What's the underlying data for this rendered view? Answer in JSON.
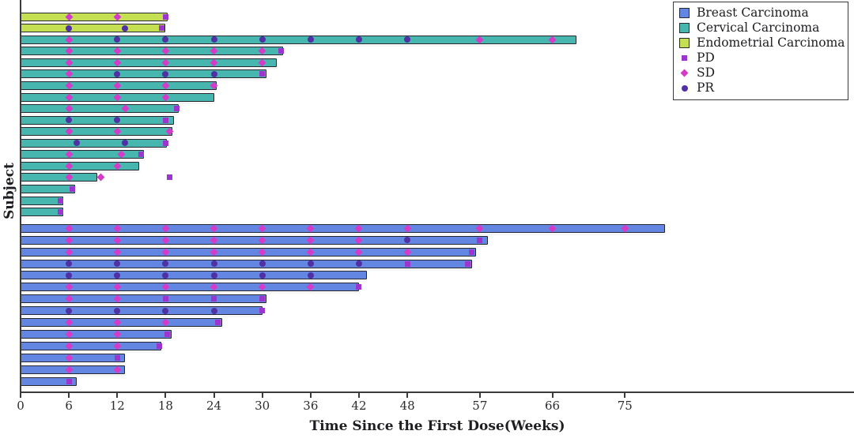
{
  "figure": {
    "x_axis_label": "Time Since the First Dose(Weeks)",
    "y_axis_label": "Subject"
  },
  "legend": {
    "groups": [
      {
        "label": "Breast Carcinoma",
        "color": "#6286e2"
      },
      {
        "label": "Cervical Carcinoma",
        "color": "#46b6ae"
      },
      {
        "label": "Endometrial Carcinoma",
        "color": "#c4df51"
      }
    ],
    "markers": [
      {
        "label": "PD",
        "shape": "square",
        "color": "#9c35cf"
      },
      {
        "label": "SD",
        "shape": "diamond",
        "color": "#d33bc8"
      },
      {
        "label": "PR",
        "shape": "circle",
        "color": "#5130a5"
      }
    ]
  },
  "chart_data": {
    "type": "bar",
    "subtype": "swimmer-plot",
    "orientation": "horizontal",
    "title": "",
    "xlabel": "Time Since the First Dose(Weeks)",
    "ylabel": "Subject",
    "x_ticks": [
      0,
      6,
      12,
      18,
      24,
      30,
      36,
      42,
      48,
      57,
      66,
      75
    ],
    "xlim": [
      0,
      103
    ],
    "grid": false,
    "legend_position": "top-right",
    "marker_legend": [
      "PD",
      "SD",
      "PR"
    ],
    "subjects": [
      {
        "group": "Endometrial Carcinoma",
        "weeks": 18.3,
        "markers": [
          [
            "SD",
            6
          ],
          [
            "SD",
            12
          ],
          [
            "PD",
            18
          ]
        ]
      },
      {
        "group": "Endometrial Carcinoma",
        "weeks": 18.0,
        "markers": [
          [
            "PR",
            6
          ],
          [
            "PR",
            13
          ],
          [
            "PD",
            17.5
          ]
        ]
      },
      {
        "group": "Cervical Carcinoma",
        "weeks": 69.0,
        "markers": [
          [
            "SD",
            6
          ],
          [
            "PR",
            12
          ],
          [
            "PR",
            18
          ],
          [
            "PR",
            24
          ],
          [
            "PR",
            30
          ],
          [
            "PR",
            36
          ],
          [
            "PR",
            42
          ],
          [
            "PR",
            48
          ],
          [
            "SD",
            57
          ],
          [
            "SD",
            66
          ]
        ]
      },
      {
        "group": "Cervical Carcinoma",
        "weeks": 32.6,
        "markers": [
          [
            "SD",
            6
          ],
          [
            "SD",
            12
          ],
          [
            "SD",
            18
          ],
          [
            "SD",
            24
          ],
          [
            "SD",
            30
          ],
          [
            "PD",
            32.3
          ]
        ]
      },
      {
        "group": "Cervical Carcinoma",
        "weeks": 31.8,
        "markers": [
          [
            "SD",
            6
          ],
          [
            "SD",
            12
          ],
          [
            "SD",
            18
          ],
          [
            "SD",
            24
          ],
          [
            "SD",
            30
          ]
        ]
      },
      {
        "group": "Cervical Carcinoma",
        "weeks": 30.5,
        "markers": [
          [
            "SD",
            6
          ],
          [
            "PR",
            12
          ],
          [
            "PR",
            18
          ],
          [
            "PR",
            24
          ],
          [
            "PD",
            30
          ]
        ]
      },
      {
        "group": "Cervical Carcinoma",
        "weeks": 24.3,
        "markers": [
          [
            "SD",
            6
          ],
          [
            "SD",
            12
          ],
          [
            "SD",
            18
          ],
          [
            "SD",
            24
          ]
        ]
      },
      {
        "group": "Cervical Carcinoma",
        "weeks": 24.0,
        "markers": [
          [
            "SD",
            6
          ],
          [
            "SD",
            12
          ],
          [
            "SD",
            18
          ]
        ]
      },
      {
        "group": "Cervical Carcinoma",
        "weeks": 19.6,
        "markers": [
          [
            "SD",
            6
          ],
          [
            "SD",
            13
          ],
          [
            "PD",
            19.4
          ]
        ]
      },
      {
        "group": "Cervical Carcinoma",
        "weeks": 19.0,
        "markers": [
          [
            "PR",
            6
          ],
          [
            "PR",
            12
          ],
          [
            "PD",
            18
          ]
        ]
      },
      {
        "group": "Cervical Carcinoma",
        "weeks": 18.8,
        "markers": [
          [
            "SD",
            6
          ],
          [
            "SD",
            12
          ],
          [
            "SD",
            18.5
          ]
        ]
      },
      {
        "group": "Cervical Carcinoma",
        "weeks": 18.2,
        "markers": [
          [
            "PR",
            7
          ],
          [
            "PR",
            13
          ],
          [
            "PD",
            18
          ]
        ]
      },
      {
        "group": "Cervical Carcinoma",
        "weeks": 15.3,
        "markers": [
          [
            "SD",
            6
          ],
          [
            "SD",
            12.5
          ],
          [
            "PD",
            15
          ]
        ]
      },
      {
        "group": "Cervical Carcinoma",
        "weeks": 14.7,
        "markers": [
          [
            "SD",
            6
          ],
          [
            "SD",
            12
          ]
        ]
      },
      {
        "group": "Cervical Carcinoma",
        "weeks": 9.5,
        "markers": [
          [
            "SD",
            6
          ],
          [
            "SD",
            10
          ],
          [
            "PD",
            18.5
          ]
        ]
      },
      {
        "group": "Cervical Carcinoma",
        "weeks": 6.8,
        "markers": [
          [
            "PD",
            6.4
          ]
        ]
      },
      {
        "group": "Cervical Carcinoma",
        "weeks": 5.3,
        "markers": [
          [
            "PD",
            5
          ]
        ]
      },
      {
        "group": "Cervical Carcinoma",
        "weeks": 5.3,
        "markers": [
          [
            "PD",
            5
          ]
        ]
      },
      {
        "group": "Breast Carcinoma",
        "weeks": 80.0,
        "markers": [
          [
            "SD",
            6
          ],
          [
            "SD",
            12
          ],
          [
            "SD",
            18
          ],
          [
            "SD",
            24
          ],
          [
            "SD",
            30
          ],
          [
            "SD",
            36
          ],
          [
            "SD",
            42
          ],
          [
            "SD",
            48
          ],
          [
            "SD",
            57
          ],
          [
            "SD",
            66
          ],
          [
            "SD",
            75
          ]
        ]
      },
      {
        "group": "Breast Carcinoma",
        "weeks": 58.0,
        "markers": [
          [
            "SD",
            6
          ],
          [
            "SD",
            12
          ],
          [
            "SD",
            18
          ],
          [
            "SD",
            24
          ],
          [
            "SD",
            30
          ],
          [
            "SD",
            36
          ],
          [
            "SD",
            42
          ],
          [
            "PR",
            48
          ],
          [
            "PD",
            57
          ]
        ]
      },
      {
        "group": "Breast Carcinoma",
        "weeks": 56.5,
        "markers": [
          [
            "SD",
            6
          ],
          [
            "SD",
            12
          ],
          [
            "SD",
            18
          ],
          [
            "SD",
            24
          ],
          [
            "SD",
            30
          ],
          [
            "SD",
            36
          ],
          [
            "SD",
            42
          ],
          [
            "SD",
            48
          ],
          [
            "PD",
            56
          ]
        ]
      },
      {
        "group": "Breast Carcinoma",
        "weeks": 56.0,
        "markers": [
          [
            "PR",
            6
          ],
          [
            "PR",
            12
          ],
          [
            "PR",
            18
          ],
          [
            "PR",
            24
          ],
          [
            "PR",
            30
          ],
          [
            "PR",
            36
          ],
          [
            "PR",
            42
          ],
          [
            "PD",
            48
          ],
          [
            "PD",
            55.5
          ]
        ]
      },
      {
        "group": "Breast Carcinoma",
        "weeks": 43.0,
        "markers": [
          [
            "PR",
            6
          ],
          [
            "PR",
            12
          ],
          [
            "PR",
            18
          ],
          [
            "PR",
            24
          ],
          [
            "PR",
            30
          ],
          [
            "PR",
            36
          ]
        ]
      },
      {
        "group": "Breast Carcinoma",
        "weeks": 42.0,
        "markers": [
          [
            "SD",
            6
          ],
          [
            "SD",
            12
          ],
          [
            "SD",
            18
          ],
          [
            "SD",
            24
          ],
          [
            "SD",
            30
          ],
          [
            "SD",
            36
          ],
          [
            "PD",
            42
          ]
        ]
      },
      {
        "group": "Breast Carcinoma",
        "weeks": 30.5,
        "markers": [
          [
            "SD",
            6
          ],
          [
            "SD",
            12
          ],
          [
            "PD",
            18
          ],
          [
            "PD",
            24
          ],
          [
            "PD",
            30
          ]
        ]
      },
      {
        "group": "Breast Carcinoma",
        "weeks": 30.0,
        "markers": [
          [
            "PR",
            6
          ],
          [
            "PR",
            12
          ],
          [
            "PR",
            18
          ],
          [
            "PR",
            24
          ],
          [
            "PD",
            30
          ]
        ]
      },
      {
        "group": "Breast Carcinoma",
        "weeks": 25.0,
        "markers": [
          [
            "SD",
            6
          ],
          [
            "SD",
            12
          ],
          [
            "SD",
            18
          ],
          [
            "PD",
            24.5
          ]
        ]
      },
      {
        "group": "Breast Carcinoma",
        "weeks": 18.7,
        "markers": [
          [
            "SD",
            6
          ],
          [
            "SD",
            12
          ],
          [
            "PD",
            18.2
          ]
        ]
      },
      {
        "group": "Breast Carcinoma",
        "weeks": 17.5,
        "markers": [
          [
            "SD",
            6
          ],
          [
            "SD",
            12
          ],
          [
            "PD",
            17.2
          ]
        ]
      },
      {
        "group": "Breast Carcinoma",
        "weeks": 13.0,
        "markers": [
          [
            "SD",
            6
          ],
          [
            "PD",
            12
          ]
        ]
      },
      {
        "group": "Breast Carcinoma",
        "weeks": 13.0,
        "markers": [
          [
            "SD",
            6
          ],
          [
            "SD",
            12
          ]
        ]
      },
      {
        "group": "Breast Carcinoma",
        "weeks": 7.0,
        "markers": [
          [
            "PD",
            6
          ]
        ]
      }
    ]
  }
}
